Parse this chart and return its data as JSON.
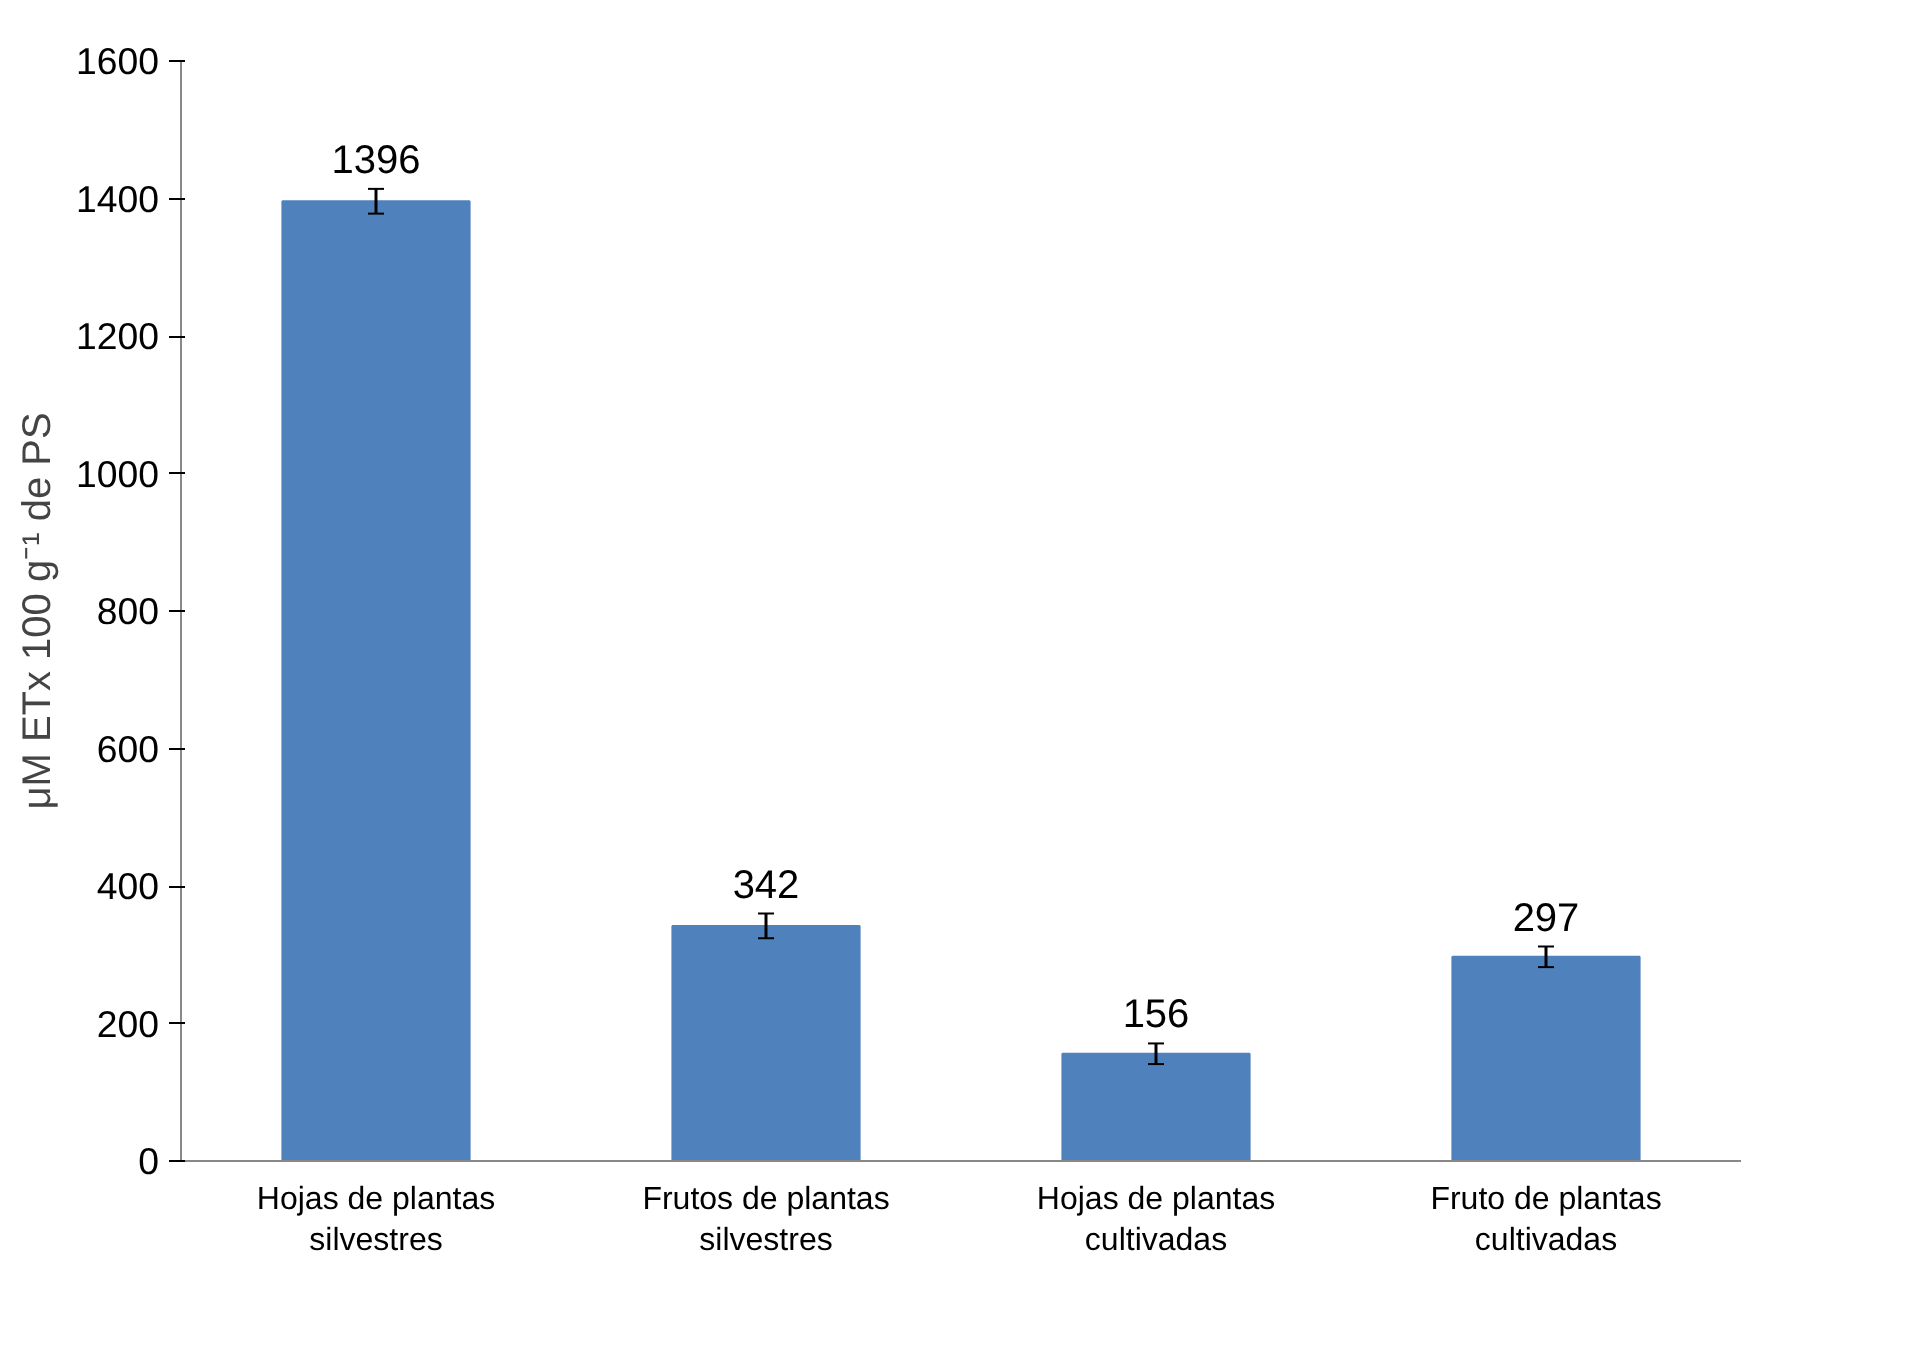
{
  "chart_data": {
    "type": "bar",
    "ylabel": "μM ETx 100 g⁻¹ de PS",
    "categories": [
      "Hojas de plantas silvestres",
      "Frutos de plantas silvestres",
      "Hojas de plantas cultivadas",
      "Fruto de plantas cultivadas"
    ],
    "values": [
      1396,
      342,
      156,
      297
    ],
    "errors": [
      18,
      18,
      15,
      15
    ],
    "color": "#4f81bd",
    "ylim": [
      0,
      1600
    ],
    "yticks": [
      0,
      200,
      400,
      600,
      800,
      1000,
      1200,
      1400,
      1600
    ],
    "grid": false,
    "data_labels": true
  }
}
